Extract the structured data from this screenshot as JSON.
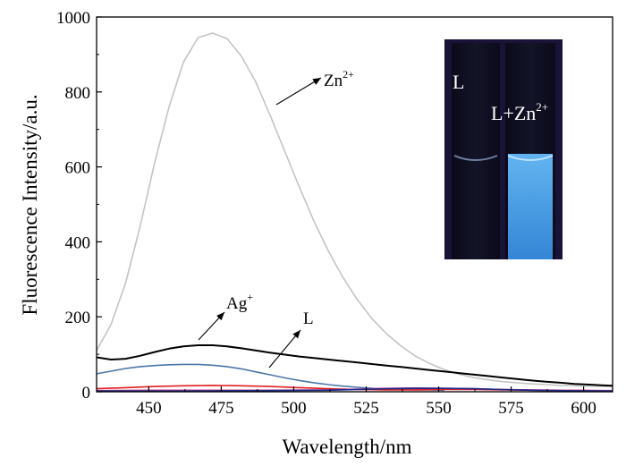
{
  "chart_data": {
    "type": "line",
    "xlabel": "Wavelength/nm",
    "ylabel": "Fluorescence Intensity/a.u.",
    "xlim": [
      432,
      610
    ],
    "ylim": [
      0,
      1000
    ],
    "x_ticks": [
      450,
      475,
      500,
      525,
      550,
      575,
      600
    ],
    "y_ticks": [
      0,
      200,
      400,
      600,
      800,
      1000
    ],
    "colors": {
      "Zn2+": "#c4c4c4",
      "Ag+": "#000000",
      "L": "#4a76a8",
      "red": "#e02020",
      "magenta": "#c23a8a",
      "navy": "#1a2a8c"
    },
    "series": [
      {
        "key": "zn",
        "color": "#c4c4c4",
        "x": [
          432,
          437,
          442,
          447,
          452,
          457,
          462,
          467,
          472,
          477,
          482,
          487,
          492,
          497,
          502,
          507,
          512,
          517,
          522,
          527,
          532,
          537,
          542,
          547,
          552,
          557,
          562,
          567,
          572,
          577,
          582,
          587,
          592,
          597,
          602,
          607,
          610
        ],
        "y": [
          110,
          180,
          290,
          440,
          610,
          760,
          880,
          945,
          957,
          942,
          895,
          825,
          735,
          640,
          545,
          455,
          375,
          305,
          245,
          195,
          155,
          122,
          95,
          75,
          59,
          47,
          38,
          32,
          27,
          24,
          21,
          19,
          17,
          16,
          15,
          14,
          14
        ]
      },
      {
        "key": "ag",
        "color": "#000000",
        "x": [
          432,
          437,
          442,
          447,
          452,
          457,
          462,
          467,
          472,
          477,
          482,
          487,
          492,
          497,
          502,
          507,
          512,
          517,
          522,
          527,
          532,
          537,
          542,
          547,
          552,
          557,
          562,
          567,
          572,
          577,
          582,
          587,
          592,
          597,
          602,
          607,
          610
        ],
        "y": [
          92,
          86,
          88,
          96,
          106,
          115,
          121,
          124,
          124,
          121,
          116,
          110,
          104,
          99,
          94,
          90,
          86,
          82,
          78,
          74,
          70,
          66,
          62,
          58,
          54,
          50,
          46,
          42,
          38,
          34,
          30,
          27,
          24,
          21,
          19,
          17,
          16
        ]
      },
      {
        "key": "l",
        "color": "#4a76a8",
        "x": [
          432,
          437,
          442,
          447,
          452,
          457,
          462,
          467,
          472,
          477,
          482,
          487,
          492,
          497,
          502,
          507,
          512,
          517,
          522,
          527,
          532,
          537,
          542,
          547,
          552
        ],
        "y": [
          48,
          55,
          62,
          67,
          70,
          72,
          73,
          73,
          71,
          67,
          61,
          53,
          45,
          37,
          30,
          24,
          19,
          15,
          12,
          9,
          7,
          6,
          5,
          5,
          4
        ]
      },
      {
        "key": "red",
        "color": "#e02020",
        "x": [
          432,
          442,
          452,
          462,
          472,
          482,
          492,
          502,
          512,
          522,
          532,
          542,
          552,
          562,
          572,
          582,
          592,
          602,
          610
        ],
        "y": [
          8,
          11,
          14,
          16,
          17,
          16,
          14,
          11,
          8,
          6,
          5,
          5,
          6,
          6,
          5,
          4,
          3,
          3,
          2
        ]
      },
      {
        "key": "magenta",
        "color": "#c23a8a",
        "x": [
          432,
          452,
          472,
          492,
          512,
          522,
          532,
          542,
          552,
          562,
          572,
          582,
          592,
          610
        ],
        "y": [
          3,
          4,
          4,
          4,
          5,
          7,
          9,
          10,
          9,
          8,
          6,
          5,
          4,
          3
        ]
      },
      {
        "key": "navy",
        "color": "#1a2a8c",
        "x": [
          432,
          462,
          492,
          512,
          522,
          532,
          542,
          552,
          562,
          572,
          582,
          592,
          610
        ],
        "y": [
          2,
          2,
          3,
          4,
          6,
          8,
          9,
          9,
          8,
          6,
          4,
          3,
          2
        ]
      }
    ],
    "annotations": [
      {
        "key": "zn",
        "text": "Zn",
        "sup": "2+"
      },
      {
        "key": "ag",
        "text": "Ag",
        "sup": "+"
      },
      {
        "key": "l",
        "text": "L",
        "sup": ""
      }
    ],
    "inset": {
      "left_label": "L",
      "right_label": "L+Zn",
      "right_sup": "2+",
      "background": "#1a1338",
      "glow_color": "#4aa8e8"
    }
  }
}
